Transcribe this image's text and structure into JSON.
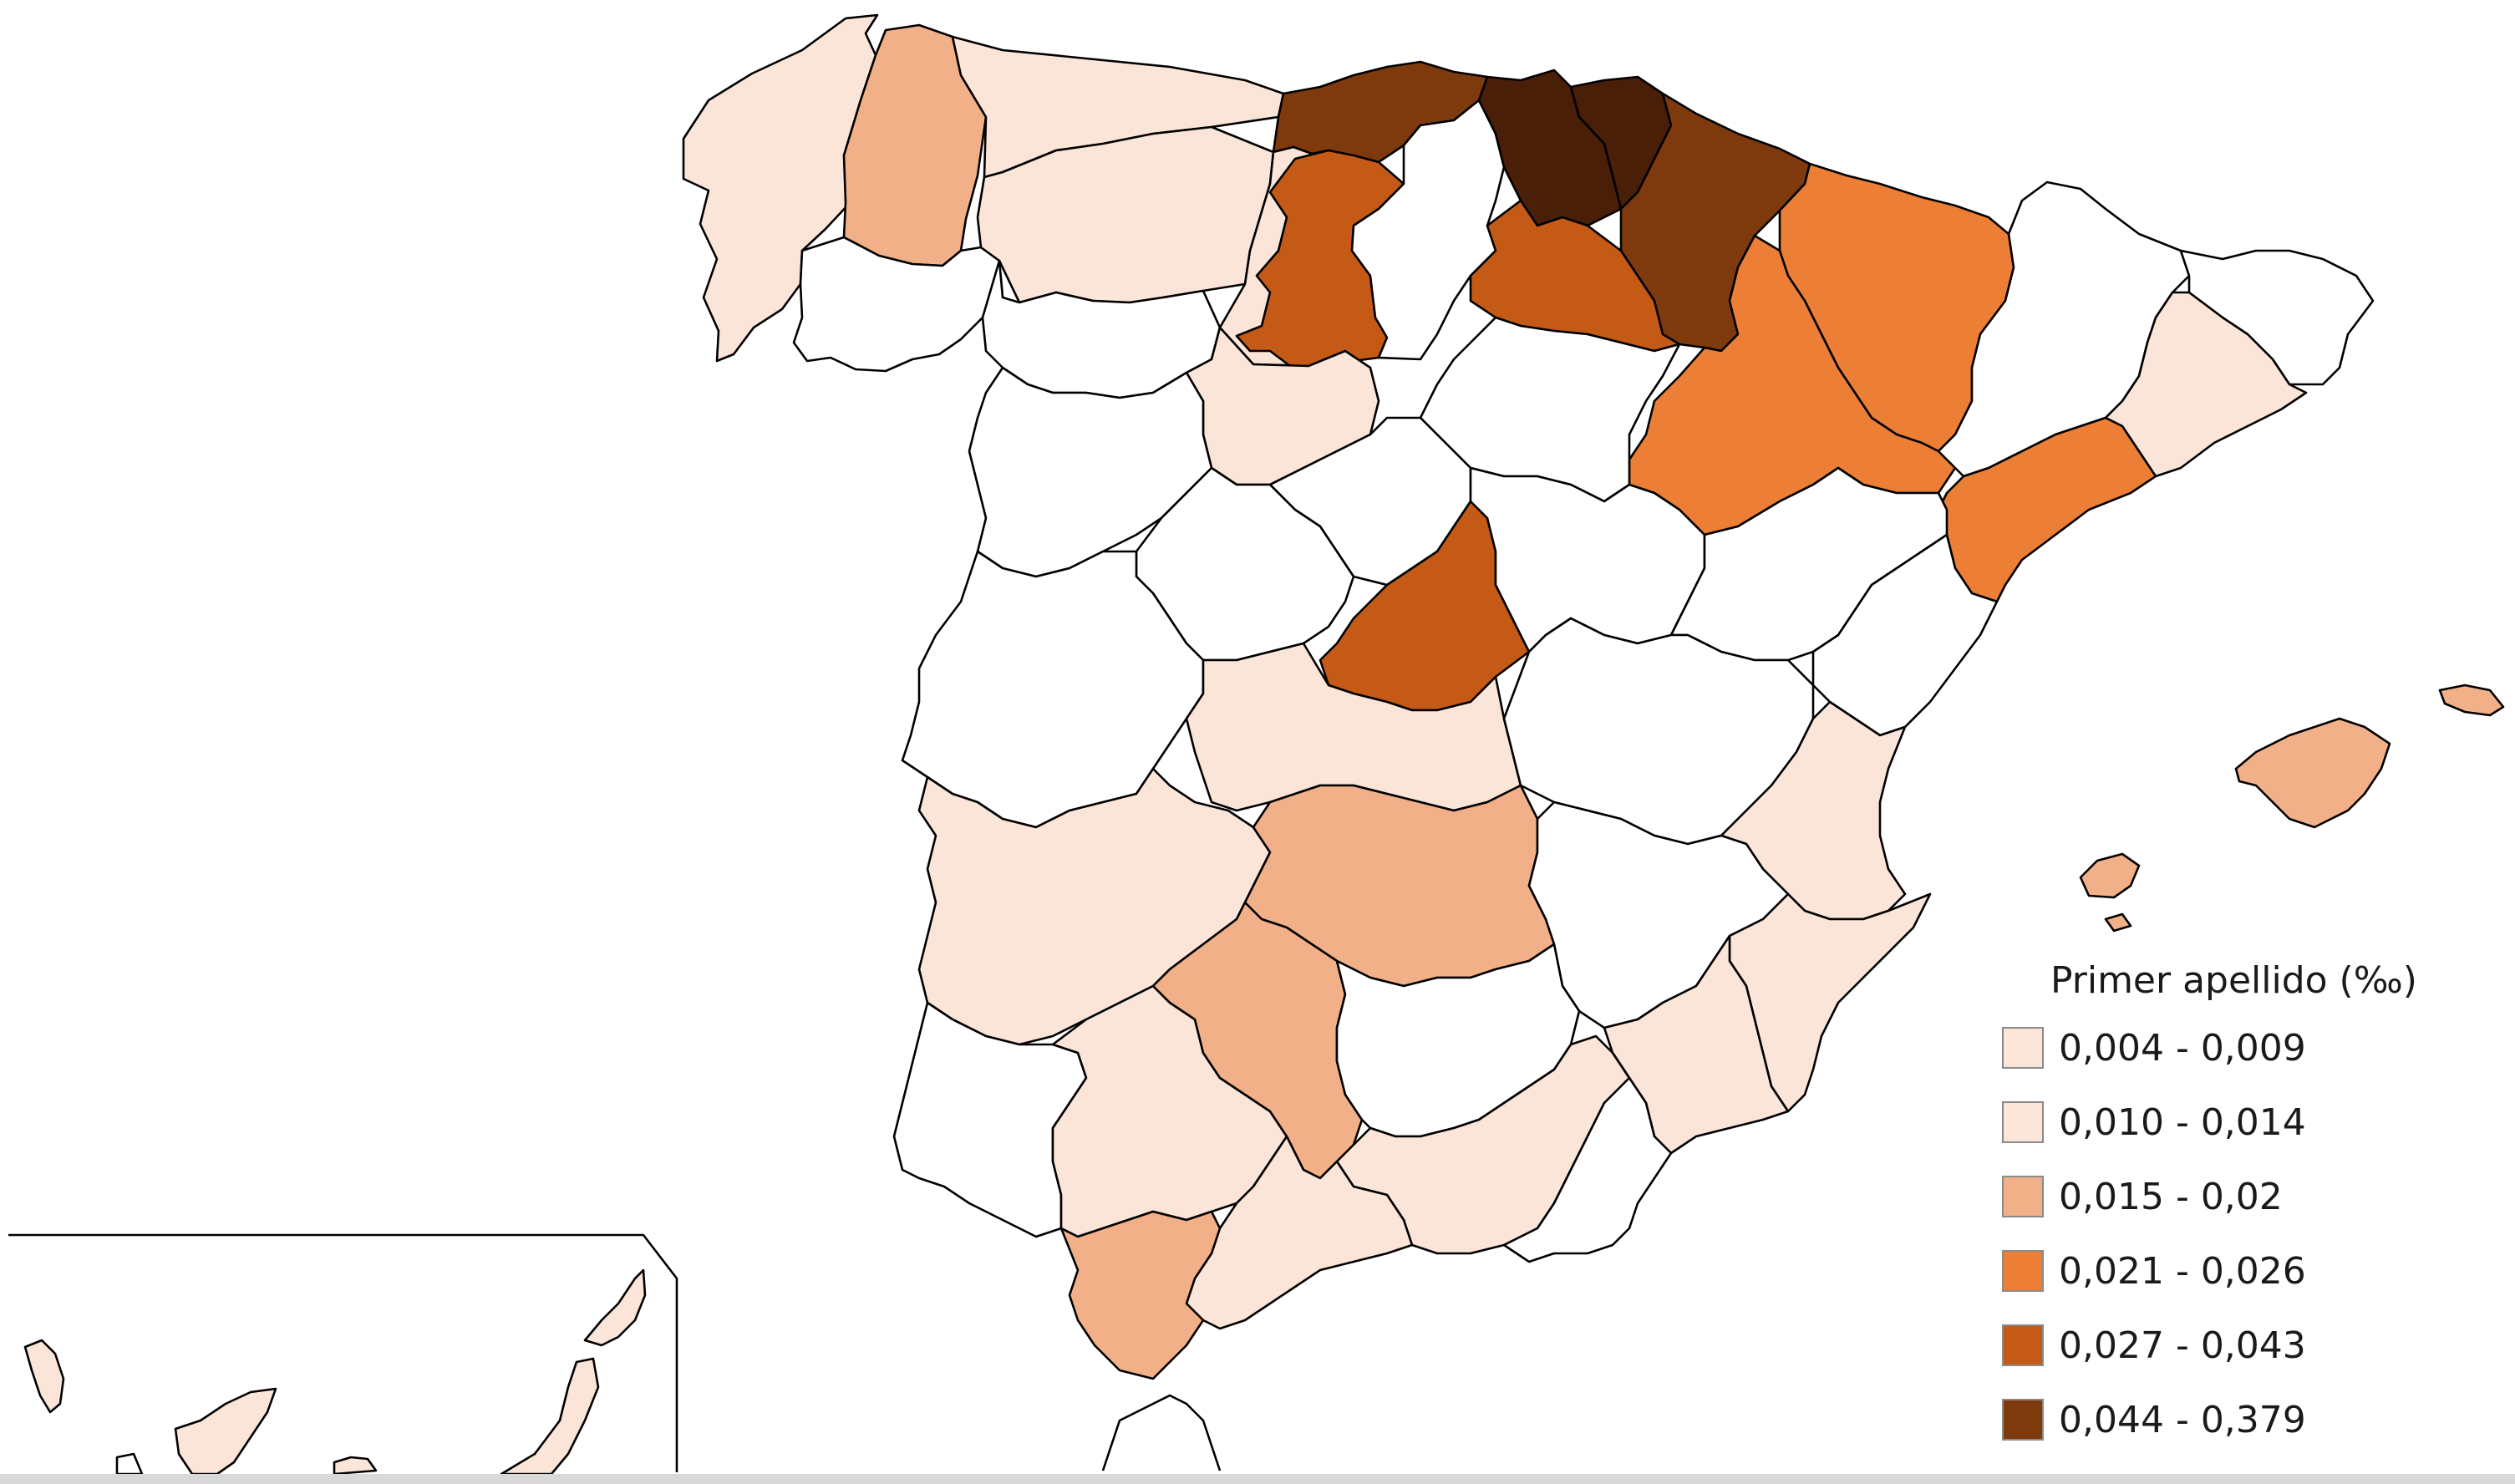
{
  "colors": {
    "class_1": "#fbe4d8",
    "class_2": "#fbe4d8",
    "class_3": "#f2b088",
    "class_4": "#ec7f35",
    "class_5": "#c45a16",
    "class_6": "#7e3a0d",
    "class_top": "#4a1f08",
    "no_data": "#ffffff",
    "border": "#000000"
  },
  "legend": {
    "title": "Primer apellido (‰)",
    "items": [
      {
        "label": "0,004 - 0,009",
        "color": "#fbe4d8"
      },
      {
        "label": "0,010 - 0,014",
        "color": "#fbe4d8"
      },
      {
        "label": "0,015 - 0,02",
        "color": "#f2b088"
      },
      {
        "label": "0,021 - 0,026",
        "color": "#ec7f35"
      },
      {
        "label": "0,027 - 0,043",
        "color": "#c45a16"
      },
      {
        "label": "0,044 - 0,379",
        "color": "#7e3a0d"
      }
    ]
  },
  "provinces": [
    {
      "id": "a-coruna-pontevedra",
      "class": 1
    },
    {
      "id": "lugo",
      "class": 3
    },
    {
      "id": "asturias",
      "class": 1
    },
    {
      "id": "leon",
      "class": 1
    },
    {
      "id": "ourense",
      "class": 0
    },
    {
      "id": "cantabria",
      "class": 6
    },
    {
      "id": "burgos",
      "class": 5
    },
    {
      "id": "palencia",
      "class": 1
    },
    {
      "id": "zamora",
      "class": 0
    },
    {
      "id": "bizkaia",
      "class": 7
    },
    {
      "id": "gipuzkoa",
      "class": 7
    },
    {
      "id": "navarra",
      "class": 6
    },
    {
      "id": "la-rioja",
      "class": 5
    },
    {
      "id": "alava",
      "class": 0
    },
    {
      "id": "huesca",
      "class": 4
    },
    {
      "id": "zaragoza",
      "class": 4
    },
    {
      "id": "lleida",
      "class": 0
    },
    {
      "id": "girona",
      "class": 0
    },
    {
      "id": "barcelona",
      "class": 1
    },
    {
      "id": "tarragona",
      "class": 4
    },
    {
      "id": "soria",
      "class": 0
    },
    {
      "id": "valladolid",
      "class": 1
    },
    {
      "id": "segovia",
      "class": 0
    },
    {
      "id": "salamanca",
      "class": 0
    },
    {
      "id": "avila",
      "class": 0
    },
    {
      "id": "madrid",
      "class": 5
    },
    {
      "id": "guadalajara",
      "class": 0
    },
    {
      "id": "teruel",
      "class": 0
    },
    {
      "id": "castellon",
      "class": 0
    },
    {
      "id": "caceres",
      "class": 0
    },
    {
      "id": "toledo",
      "class": 1
    },
    {
      "id": "cuenca",
      "class": 0
    },
    {
      "id": "valencia",
      "class": 1
    },
    {
      "id": "badajoz",
      "class": 1
    },
    {
      "id": "ciudad-real",
      "class": 3
    },
    {
      "id": "albacete",
      "class": 0
    },
    {
      "id": "alicante",
      "class": 1
    },
    {
      "id": "murcia",
      "class": 1
    },
    {
      "id": "huelva",
      "class": 0
    },
    {
      "id": "sevilla",
      "class": 1
    },
    {
      "id": "cordoba",
      "class": 3
    },
    {
      "id": "jaen",
      "class": 0
    },
    {
      "id": "granada",
      "class": 1
    },
    {
      "id": "almeria",
      "class": 0
    },
    {
      "id": "malaga",
      "class": 1
    },
    {
      "id": "cadiz",
      "class": 3
    },
    {
      "id": "mallorca",
      "class": 3
    },
    {
      "id": "menorca",
      "class": 3
    },
    {
      "id": "ibiza",
      "class": 3
    },
    {
      "id": "formentera",
      "class": 3
    },
    {
      "id": "la-palma",
      "class": 1
    },
    {
      "id": "tenerife",
      "class": 1
    },
    {
      "id": "gran-canaria",
      "class": 1
    },
    {
      "id": "fuerteventura",
      "class": 1
    },
    {
      "id": "lanzarote",
      "class": 1
    }
  ]
}
